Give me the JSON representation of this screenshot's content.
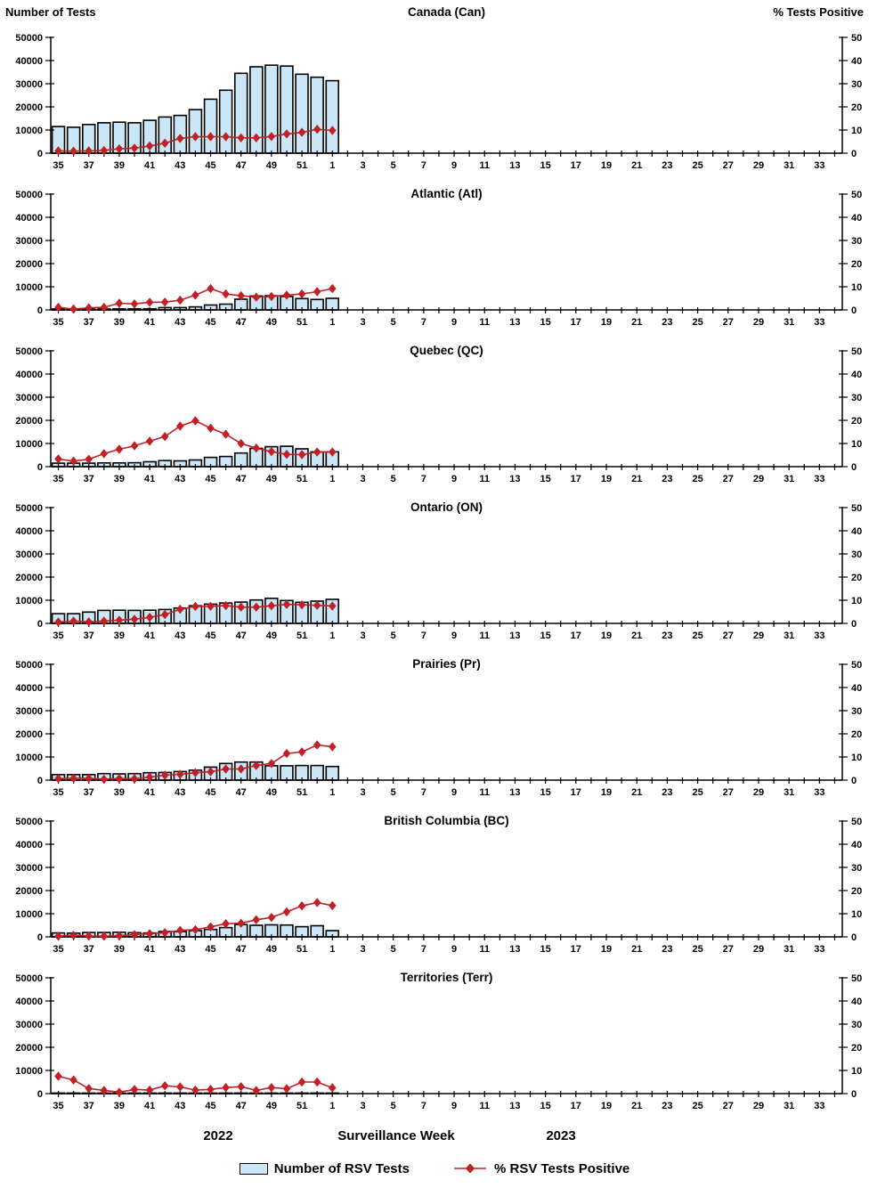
{
  "header": {
    "left_axis_title": "Number of Tests",
    "right_axis_title": "% Tests Positive"
  },
  "x_axis": {
    "tick_labels": [
      "35",
      "37",
      "39",
      "41",
      "43",
      "45",
      "47",
      "49",
      "51",
      "1",
      "3",
      "5",
      "7",
      "9",
      "11",
      "13",
      "15",
      "17",
      "19",
      "21",
      "23",
      "25",
      "27",
      "29",
      "31",
      "33"
    ],
    "year_left": "2022",
    "title": "Surveillance Week",
    "year_right": "2023",
    "total_week_slots": 52
  },
  "legend": {
    "bar_label": "Number of RSV Tests",
    "line_label": "% RSV Tests Positive",
    "position": "bottom"
  },
  "colors": {
    "bar_fill": "#CBE6F7",
    "bar_border": "#000000",
    "line": "#C32026",
    "axis": "#000000"
  },
  "chart_data": [
    {
      "type": "bar+line",
      "title": "Canada (Can)",
      "weeks": [
        35,
        36,
        37,
        38,
        39,
        40,
        41,
        42,
        43,
        44,
        45,
        46,
        47,
        48,
        49,
        50,
        51,
        52,
        1
      ],
      "series": [
        {
          "name": "Number of RSV Tests",
          "axis": "left",
          "values": [
            11500,
            11200,
            12400,
            13100,
            13400,
            13100,
            14200,
            15600,
            16300,
            18800,
            23300,
            27200,
            34500,
            37300,
            38000,
            37600,
            34100,
            32800,
            31300
          ]
        },
        {
          "name": "% RSV Tests Positive",
          "axis": "right",
          "values": [
            1.0,
            0.9,
            1.0,
            1.2,
            1.9,
            2.2,
            3.1,
            4.3,
            6.4,
            7.1,
            7.1,
            7.1,
            6.6,
            6.6,
            7.2,
            8.3,
            9.0,
            10.3,
            9.8
          ]
        }
      ],
      "left_ylim": [
        0,
        50000
      ],
      "right_ylim": [
        0,
        50
      ],
      "left_yticks": [
        0,
        10000,
        20000,
        30000,
        40000,
        50000
      ],
      "right_yticks": [
        0,
        10,
        20,
        30,
        40,
        50
      ],
      "grid": false
    },
    {
      "type": "bar+line",
      "title": "Atlantic (Atl)",
      "weeks": [
        35,
        36,
        37,
        38,
        39,
        40,
        41,
        42,
        43,
        44,
        45,
        46,
        47,
        48,
        49,
        50,
        51,
        52,
        1
      ],
      "series": [
        {
          "name": "Number of RSV Tests",
          "axis": "left",
          "values": [
            400,
            350,
            350,
            400,
            450,
            450,
            500,
            1000,
            1000,
            1300,
            2100,
            2500,
            4600,
            6000,
            6100,
            5800,
            4900,
            4500,
            5000
          ]
        },
        {
          "name": "% RSV Tests Positive",
          "axis": "right",
          "values": [
            1.1,
            0.4,
            0.9,
            1.1,
            2.9,
            2.6,
            3.3,
            3.4,
            4.2,
            6.4,
            9.2,
            6.9,
            6.1,
            5.5,
            5.8,
            6.4,
            6.9,
            7.9,
            9.2
          ]
        }
      ],
      "left_ylim": [
        0,
        50000
      ],
      "right_ylim": [
        0,
        50
      ],
      "left_yticks": [
        0,
        10000,
        20000,
        30000,
        40000,
        50000
      ],
      "right_yticks": [
        0,
        10,
        20,
        30,
        40,
        50
      ],
      "grid": false
    },
    {
      "type": "bar+line",
      "title": "Quebec (QC)",
      "weeks": [
        35,
        36,
        37,
        38,
        39,
        40,
        41,
        42,
        43,
        44,
        45,
        46,
        47,
        48,
        49,
        50,
        51,
        52,
        1
      ],
      "series": [
        {
          "name": "Number of RSV Tests",
          "axis": "left",
          "values": [
            1500,
            1500,
            1500,
            1600,
            1600,
            1700,
            2100,
            2600,
            2500,
            2900,
            4000,
            4400,
            5900,
            7900,
            8600,
            8800,
            7700,
            6400,
            6400
          ]
        },
        {
          "name": "% RSV Tests Positive",
          "axis": "right",
          "values": [
            3.3,
            2.4,
            3.2,
            5.6,
            7.5,
            9.0,
            11.0,
            13.0,
            17.5,
            19.8,
            16.6,
            14.0,
            10.0,
            8.0,
            6.5,
            5.3,
            5.2,
            6.3,
            6.3
          ]
        }
      ],
      "left_ylim": [
        0,
        50000
      ],
      "right_ylim": [
        0,
        50
      ],
      "left_yticks": [
        0,
        10000,
        20000,
        30000,
        40000,
        50000
      ],
      "right_yticks": [
        0,
        10,
        20,
        30,
        40,
        50
      ],
      "grid": false
    },
    {
      "type": "bar+line",
      "title": "Ontario (ON)",
      "weeks": [
        35,
        36,
        37,
        38,
        39,
        40,
        41,
        42,
        43,
        44,
        45,
        46,
        47,
        48,
        49,
        50,
        51,
        52,
        1
      ],
      "series": [
        {
          "name": "Number of RSV Tests",
          "axis": "left",
          "values": [
            4200,
            4200,
            4900,
            5600,
            5700,
            5600,
            5700,
            6000,
            6600,
            7600,
            8300,
            8800,
            9200,
            10100,
            10800,
            9900,
            9100,
            9600,
            10400
          ]
        },
        {
          "name": "% RSV Tests Positive",
          "axis": "right",
          "values": [
            0.6,
            1.0,
            0.7,
            1.0,
            1.4,
            1.8,
            2.6,
            3.8,
            6.1,
            7.3,
            7.4,
            7.7,
            7.0,
            7.0,
            7.6,
            8.2,
            8.0,
            7.8,
            7.5
          ]
        }
      ],
      "left_ylim": [
        0,
        50000
      ],
      "right_ylim": [
        0,
        50
      ],
      "left_yticks": [
        0,
        10000,
        20000,
        30000,
        40000,
        50000
      ],
      "right_yticks": [
        0,
        10,
        20,
        30,
        40,
        50
      ],
      "grid": false
    },
    {
      "type": "bar+line",
      "title": "Prairies (Pr)",
      "weeks": [
        35,
        36,
        37,
        38,
        39,
        40,
        41,
        42,
        43,
        44,
        45,
        46,
        47,
        48,
        49,
        50,
        51,
        52,
        1
      ],
      "series": [
        {
          "name": "Number of RSV Tests",
          "axis": "left",
          "values": [
            2400,
            2400,
            2400,
            2800,
            2700,
            2800,
            3200,
            3300,
            3700,
            4300,
            5600,
            7200,
            7800,
            7800,
            6200,
            6200,
            6300,
            6300,
            5900
          ]
        },
        {
          "name": "% RSV Tests Positive",
          "axis": "right",
          "values": [
            0.7,
            0.8,
            0.8,
            0.4,
            0.7,
            0.6,
            1.3,
            2.1,
            2.5,
            3.2,
            3.6,
            4.8,
            4.8,
            6.3,
            7.2,
            11.5,
            12.2,
            15.2,
            14.4
          ]
        }
      ],
      "left_ylim": [
        0,
        50000
      ],
      "right_ylim": [
        0,
        50
      ],
      "left_yticks": [
        0,
        10000,
        20000,
        30000,
        40000,
        50000
      ],
      "right_yticks": [
        0,
        10,
        20,
        30,
        40,
        50
      ],
      "grid": false
    },
    {
      "type": "bar+line",
      "title": "British Columbia (BC)",
      "weeks": [
        35,
        36,
        37,
        38,
        39,
        40,
        41,
        42,
        43,
        44,
        45,
        46,
        47,
        48,
        49,
        50,
        51,
        52,
        1
      ],
      "series": [
        {
          "name": "Number of RSV Tests",
          "axis": "left",
          "values": [
            1700,
            1600,
            1900,
            1900,
            2000,
            1800,
            1700,
            2300,
            2300,
            2700,
            3200,
            4000,
            5300,
            5000,
            5200,
            5100,
            4400,
            4800,
            2700
          ]
        },
        {
          "name": "% RSV Tests Positive",
          "axis": "right",
          "values": [
            0.3,
            0.7,
            0.4,
            0.3,
            0.5,
            1.0,
            1.4,
            1.8,
            2.8,
            3.1,
            4.3,
            5.7,
            5.9,
            7.4,
            8.4,
            10.8,
            13.4,
            14.8,
            13.5
          ]
        }
      ],
      "left_ylim": [
        0,
        50000
      ],
      "right_ylim": [
        0,
        50
      ],
      "left_yticks": [
        0,
        10000,
        20000,
        30000,
        40000,
        50000
      ],
      "right_yticks": [
        0,
        10,
        20,
        30,
        40,
        50
      ],
      "grid": false
    },
    {
      "type": "bar+line",
      "title": "Territories (Terr)",
      "weeks": [
        35,
        36,
        37,
        38,
        39,
        40,
        41,
        42,
        43,
        44,
        45,
        46,
        47,
        48,
        49,
        50,
        51,
        52,
        1
      ],
      "series": [
        {
          "name": "Number of RSV Tests",
          "axis": "left",
          "values": [
            60,
            50,
            45,
            40,
            40,
            50,
            55,
            60,
            70,
            70,
            80,
            80,
            90,
            70,
            80,
            90,
            100,
            100,
            80
          ]
        },
        {
          "name": "% RSV Tests Positive",
          "axis": "right",
          "values": [
            7.5,
            5.9,
            2.2,
            1.4,
            0.6,
            1.8,
            1.5,
            3.4,
            2.9,
            1.5,
            1.8,
            2.6,
            3.0,
            1.4,
            2.6,
            2.1,
            5.0,
            5.0,
            2.5
          ]
        }
      ],
      "left_ylim": [
        0,
        50000
      ],
      "right_ylim": [
        0,
        50
      ],
      "left_yticks": [
        0,
        10000,
        20000,
        30000,
        40000,
        50000
      ],
      "right_yticks": [
        0,
        10,
        20,
        30,
        40,
        50
      ],
      "grid": false
    }
  ]
}
